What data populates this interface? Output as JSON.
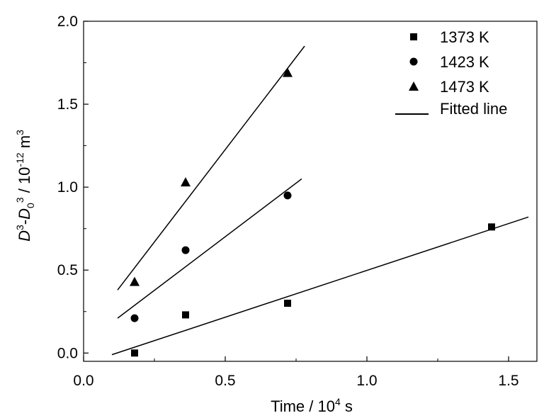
{
  "chart_data": {
    "type": "scatter",
    "xlabel": {
      "prefix": "Time / 10",
      "sup": "4",
      "suffix": " s"
    },
    "ylabel": {
      "parts": [
        {
          "text": "D",
          "italic": true
        },
        {
          "text": "3",
          "sup": true
        },
        {
          "text": "-"
        },
        {
          "text": "D",
          "italic": true
        },
        {
          "text": "0",
          "sub": true
        },
        {
          "text": "3",
          "sup": true
        },
        {
          "text": " / 10"
        },
        {
          "text": "-12",
          "sup": true
        },
        {
          "text": " m"
        },
        {
          "text": "3",
          "sup": true
        }
      ]
    },
    "xlim": [
      0.0,
      1.6
    ],
    "ylim": [
      -0.05,
      2.0
    ],
    "xticks": [
      "0.0",
      "0.5",
      "1.0",
      "1.5"
    ],
    "yticks": [
      "0.0",
      "0.5",
      "1.0",
      "1.5",
      "2.0"
    ],
    "grid": false,
    "legend_position": "top-right",
    "series": [
      {
        "name": "1373 K",
        "marker": "square",
        "x": [
          0.18,
          0.36,
          0.72,
          1.44
        ],
        "y": [
          0.0,
          0.23,
          0.3,
          0.76
        ],
        "fit": {
          "x": [
            0.1,
            1.57
          ],
          "y": [
            -0.01,
            0.82
          ]
        }
      },
      {
        "name": "1423 K",
        "marker": "circle",
        "x": [
          0.18,
          0.36,
          0.72
        ],
        "y": [
          0.21,
          0.62,
          0.95
        ],
        "fit": {
          "x": [
            0.12,
            0.77
          ],
          "y": [
            0.21,
            1.05
          ]
        }
      },
      {
        "name": "1473 K",
        "marker": "triangle",
        "x": [
          0.18,
          0.36,
          0.72
        ],
        "y": [
          0.43,
          1.03,
          1.69
        ],
        "fit": {
          "x": [
            0.12,
            0.78
          ],
          "y": [
            0.38,
            1.85
          ]
        }
      }
    ],
    "fit_legend_label": "Fitted line"
  }
}
